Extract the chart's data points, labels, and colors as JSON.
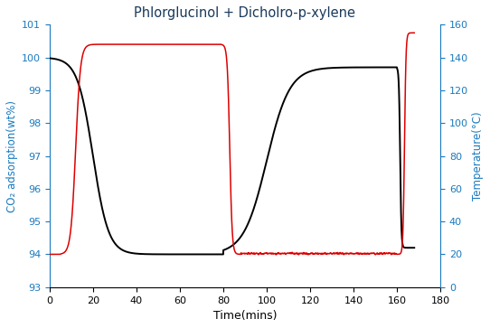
{
  "title": "Phlorglucinol + Dicholro-p-xylene",
  "xlabel": "Time(mins)",
  "ylabel_left": "CO₂ adsorption(wt%)",
  "ylabel_right": "Temperature(°C)",
  "xlim": [
    0,
    180
  ],
  "ylim_left": [
    93,
    101
  ],
  "ylim_right": [
    0,
    160
  ],
  "xticks": [
    0,
    20,
    40,
    60,
    80,
    100,
    120,
    140,
    160,
    180
  ],
  "yticks_left": [
    93,
    94,
    95,
    96,
    97,
    98,
    99,
    100,
    101
  ],
  "yticks_right": [
    0,
    20,
    40,
    60,
    80,
    100,
    120,
    140,
    160
  ],
  "title_color": "#1a3a5c",
  "left_axis_color": "#1a7abf",
  "right_axis_color": "#1a7abf",
  "black_line_color": "#000000",
  "red_line_color": "#dd0000",
  "figsize": [
    5.42,
    3.63
  ],
  "dpi": 100
}
